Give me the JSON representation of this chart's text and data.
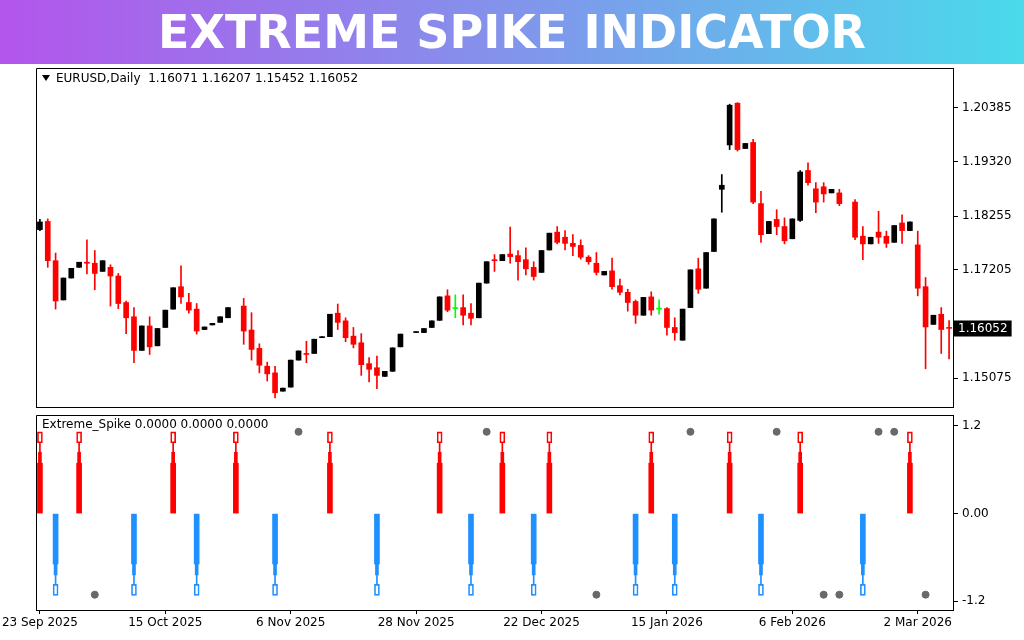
{
  "chart_data": [
    {
      "type": "candlestick",
      "title": "EXTREME SPIKE INDICATOR",
      "subtitle": "EURUSD,Daily  1.16071 1.16207 1.15452 1.16052",
      "categories": [
        null,
        null,
        null,
        null,
        null,
        null,
        null,
        null,
        null,
        null,
        null,
        null,
        null,
        null,
        null,
        null,
        null,
        null,
        null,
        null,
        null,
        null,
        null,
        null,
        null,
        null,
        null,
        null,
        null,
        null,
        null,
        null,
        null,
        null,
        null,
        null,
        null,
        null,
        null,
        null,
        null,
        null,
        null,
        null,
        null,
        null,
        null,
        null,
        null,
        null,
        null,
        null,
        null,
        null,
        null,
        null,
        null,
        null,
        null,
        null,
        null,
        null,
        null,
        null,
        null,
        null,
        null,
        null,
        null,
        null,
        null,
        null,
        null,
        null,
        null,
        null,
        null,
        null,
        null,
        null,
        null,
        null,
        null,
        null,
        null,
        null,
        null,
        null,
        null,
        null,
        null,
        null,
        null,
        null,
        null,
        null,
        null,
        null,
        null,
        null,
        null,
        null,
        null,
        null,
        null,
        null,
        null,
        null,
        null,
        null,
        null,
        null,
        null,
        null,
        null,
        null,
        null
      ],
      "ohlc": [
        [
          1.1799,
          1.1819,
          1.1797,
          1.1814
        ],
        [
          1.1815,
          1.182,
          1.1725,
          1.1738
        ],
        [
          1.1738,
          1.1753,
          1.1643,
          1.1659
        ],
        [
          1.1661,
          1.1704,
          1.1661,
          1.1704
        ],
        [
          1.1704,
          1.1723,
          1.1704,
          1.1723
        ],
        [
          1.1725,
          1.1735,
          1.1725,
          1.1735
        ],
        [
          1.1735,
          1.1779,
          1.1712,
          1.1733
        ],
        [
          1.1733,
          1.1758,
          1.1681,
          1.1713
        ],
        [
          1.1717,
          1.1738,
          1.1717,
          1.1738
        ],
        [
          1.1725,
          1.173,
          1.1649,
          1.1708
        ],
        [
          1.1708,
          1.1713,
          1.1644,
          1.1654
        ],
        [
          1.1656,
          1.1659,
          1.1595,
          1.1626
        ],
        [
          1.1628,
          1.1646,
          1.1538,
          1.1562
        ],
        [
          1.1562,
          1.161,
          1.1562,
          1.161
        ],
        [
          1.161,
          1.1628,
          1.1554,
          1.1569
        ],
        [
          1.1571,
          1.1605,
          1.1571,
          1.1605
        ],
        [
          1.1607,
          1.1641,
          1.1607,
          1.1641
        ],
        [
          1.1643,
          1.1685,
          1.1643,
          1.1685
        ],
        [
          1.1687,
          1.1728,
          1.1654,
          1.1667
        ],
        [
          1.1656,
          1.1674,
          1.1635,
          1.1641
        ],
        [
          1.1643,
          1.1654,
          1.1594,
          1.16
        ],
        [
          1.1603,
          1.1608,
          1.1603,
          1.1608
        ],
        [
          1.1612,
          1.1615,
          1.1612,
          1.1615
        ],
        [
          1.1617,
          1.1628,
          1.1617,
          1.1628
        ],
        [
          1.1626,
          1.1646,
          1.1626,
          1.1646
        ],
        null,
        [
          1.1649,
          1.1664,
          1.1574,
          1.16
        ],
        [
          1.1602,
          1.1636,
          1.1543,
          1.1564
        ],
        [
          1.1566,
          1.1575,
          1.1518,
          1.1533
        ],
        [
          1.1531,
          1.1539,
          1.1502,
          1.1516
        ],
        [
          1.1518,
          1.1531,
          1.1469,
          1.1479
        ],
        [
          1.1482,
          1.1488,
          1.1482,
          1.1488
        ],
        [
          1.149,
          1.1543,
          1.149,
          1.1543
        ],
        [
          1.1543,
          1.1561,
          1.1543,
          1.1561
        ],
        [
          1.1556,
          1.158,
          1.1538,
          1.1554
        ],
        [
          1.1556,
          1.1584,
          1.1556,
          1.1584
        ],
        [
          1.1587,
          1.1589,
          1.1587,
          1.1589
        ],
        [
          1.1589,
          1.1633,
          1.1589,
          1.1633
        ],
        [
          1.1635,
          1.1653,
          1.1603,
          1.1617
        ],
        [
          1.162,
          1.1626,
          1.1579,
          1.1587
        ],
        [
          1.159,
          1.1607,
          1.1567,
          1.1574
        ],
        [
          1.1577,
          1.1595,
          1.1513,
          1.1534
        ],
        [
          1.1536,
          1.1548,
          1.15,
          1.1525
        ],
        [
          1.1528,
          1.1551,
          1.1487,
          1.1513
        ],
        [
          1.1511,
          1.1521,
          1.1511,
          1.1521
        ],
        [
          1.1521,
          1.1567,
          1.1521,
          1.1567
        ],
        [
          1.1569,
          1.1594,
          1.1569,
          1.1594
        ],
        null,
        [
          1.1597,
          1.1599,
          1.1597,
          1.1599
        ],
        [
          1.1597,
          1.1605,
          1.1597,
          1.1605
        ],
        [
          1.1607,
          1.162,
          1.1607,
          1.162
        ],
        [
          1.1621,
          1.1667,
          1.1621,
          1.1667
        ],
        [
          1.1669,
          1.1681,
          1.1638,
          1.1641
        ],
        [
          1.1644,
          1.1671,
          1.1626,
          1.1644
        ],
        [
          1.1646,
          1.1671,
          1.1612,
          1.1631
        ],
        [
          1.1635,
          1.1654,
          1.1612,
          1.1625
        ],
        [
          1.1626,
          1.1694,
          1.1626,
          1.1694
        ],
        [
          1.1694,
          1.1736,
          1.1694,
          1.1736
        ],
        [
          1.174,
          1.175,
          1.1717,
          1.1738
        ],
        [
          1.1738,
          1.175,
          1.1738,
          1.175
        ],
        [
          1.1751,
          1.1804,
          1.1733,
          1.1746
        ],
        [
          1.1748,
          1.1758,
          1.17,
          1.1736
        ],
        [
          1.174,
          1.1763,
          1.171,
          1.1722
        ],
        [
          1.1725,
          1.1736,
          1.17,
          1.1707
        ],
        [
          1.1715,
          1.1758,
          1.1715,
          1.1758
        ],
        [
          1.1759,
          1.1792,
          1.1759,
          1.1792
        ],
        [
          1.1794,
          1.1805,
          1.1771,
          1.1774
        ],
        [
          1.1784,
          1.1797,
          1.1759,
          1.1772
        ],
        [
          1.1772,
          1.1789,
          1.1748,
          1.1766
        ],
        [
          1.1768,
          1.1779,
          1.1741,
          1.1745
        ],
        [
          1.1745,
          1.1748,
          1.1731,
          1.1736
        ],
        [
          1.1733,
          1.1754,
          1.171,
          1.1715
        ],
        [
          1.171,
          1.1717,
          1.171,
          1.1717
        ],
        [
          1.1718,
          1.1743,
          1.1682,
          1.1687
        ],
        [
          1.1689,
          1.1702,
          1.1671,
          1.1676
        ],
        [
          1.1676,
          1.1682,
          1.1639,
          1.1656
        ],
        [
          1.1658,
          1.1661,
          1.1615,
          1.1631
        ],
        [
          1.1631,
          1.1666,
          1.1631,
          1.1666
        ],
        [
          1.1667,
          1.1677,
          1.1631,
          1.1641
        ],
        [
          1.1643,
          1.1661,
          1.1633,
          1.1643
        ],
        [
          1.1644,
          1.1646,
          1.1592,
          1.1607
        ],
        [
          1.1607,
          1.1626,
          1.1582,
          1.1597
        ],
        [
          1.1582,
          1.1643,
          1.1582,
          1.1643
        ],
        [
          1.1646,
          1.172,
          1.1646,
          1.172
        ],
        [
          1.1722,
          1.1743,
          1.1674,
          1.1682
        ],
        [
          1.1684,
          1.1754,
          1.1684,
          1.1754
        ],
        [
          1.1756,
          1.182,
          1.1756,
          1.182
        ],
        [
          1.1878,
          1.1907,
          1.1833,
          1.1886
        ],
        [
          1.1965,
          1.2045,
          1.1956,
          1.2043
        ],
        [
          1.2047,
          1.2048,
          1.1953,
          1.1956
        ],
        [
          1.1958,
          1.1968,
          1.1958,
          1.1968
        ],
        [
          1.197,
          1.1976,
          1.185,
          1.1853
        ],
        [
          1.185,
          1.1874,
          1.1774,
          1.1789
        ],
        [
          1.1791,
          1.1815,
          1.1791,
          1.1815
        ],
        [
          1.1819,
          1.1838,
          1.1789,
          1.1805
        ],
        [
          1.1805,
          1.1822,
          1.1771,
          1.1777
        ],
        [
          1.1781,
          1.182,
          1.1781,
          1.182
        ],
        [
          1.1817,
          1.1915,
          1.1815,
          1.1912
        ],
        [
          1.1915,
          1.193,
          1.1886,
          1.1891
        ],
        [
          1.1879,
          1.1891,
          1.1832,
          1.1853
        ],
        [
          1.1883,
          1.1891,
          1.1853,
          1.1869
        ],
        [
          1.1871,
          1.1878,
          1.1871,
          1.1878
        ],
        [
          1.1871,
          1.1878,
          1.1846,
          1.185
        ],
        null,
        [
          1.1853,
          1.1858,
          1.1779,
          1.1784
        ],
        [
          1.1786,
          1.1805,
          1.174,
          1.1771
        ],
        [
          1.1771,
          1.1784,
          1.1771,
          1.1784
        ],
        [
          1.1794,
          1.1835,
          1.1772,
          1.1784
        ],
        [
          1.1786,
          1.1796,
          1.1764,
          1.1772
        ],
        [
          1.1774,
          1.1807,
          1.1774,
          1.1807
        ],
        [
          1.1812,
          1.1828,
          1.1772,
          1.1797
        ],
        [
          1.1797,
          1.1814,
          1.1797,
          1.1814
        ],
        [
          1.1769,
          1.1796,
          1.1669,
          1.1684
        ],
        [
          1.1687,
          1.1705,
          1.1526,
          1.1608
        ],
        [
          1.1613,
          1.1631,
          1.1613,
          1.1631
        ],
        [
          1.1633,
          1.1646,
          1.1556,
          1.1603
        ],
        [
          1.16071,
          1.16207,
          1.15452,
          1.16052
        ]
      ],
      "colors": [
        "#000000",
        "#ff0000",
        "#ff0000",
        "#000000",
        "#000000",
        "#000000",
        "#ff0000",
        "#ff0000",
        "#000000",
        "#ff0000",
        "#ff0000",
        "#ff0000",
        "#ff0000",
        "#000000",
        "#ff0000",
        "#000000",
        "#000000",
        "#000000",
        "#ff0000",
        "#ff0000",
        "#ff0000",
        "#000000",
        "#000000",
        "#000000",
        "#000000",
        "#000000",
        "#ff0000",
        "#ff0000",
        "#ff0000",
        "#ff0000",
        "#ff0000",
        "#000000",
        "#000000",
        "#000000",
        "#ff0000",
        "#000000",
        "#000000",
        "#000000",
        "#ff0000",
        "#ff0000",
        "#ff0000",
        "#ff0000",
        "#ff0000",
        "#ff0000",
        "#000000",
        "#000000",
        "#000000",
        "#000000",
        "#000000",
        "#000000",
        "#000000",
        "#000000",
        "#ff0000",
        "#00ff00",
        "#ff0000",
        "#ff0000",
        "#000000",
        "#000000",
        "#ff0000",
        "#000000",
        "#ff0000",
        "#ff0000",
        "#ff0000",
        "#ff0000",
        "#000000",
        "#000000",
        "#ff0000",
        "#ff0000",
        "#ff0000",
        "#ff0000",
        "#ff0000",
        "#ff0000",
        "#000000",
        "#ff0000",
        "#ff0000",
        "#ff0000",
        "#ff0000",
        "#000000",
        "#ff0000",
        "#00ff00",
        "#ff0000",
        "#ff0000",
        "#000000",
        "#000000",
        "#ff0000",
        "#000000",
        "#000000",
        "#000000",
        "#000000",
        "#ff0000",
        "#000000",
        "#ff0000",
        "#ff0000",
        "#000000",
        "#ff0000",
        "#ff0000",
        "#000000",
        "#000000",
        "#ff0000",
        "#ff0000",
        "#ff0000",
        "#000000",
        "#ff0000",
        "#000000",
        "#ff0000",
        "#ff0000",
        "#000000",
        "#ff0000",
        "#ff0000",
        "#000000",
        "#ff0000",
        "#000000",
        "#ff0000",
        "#ff0000",
        "#000000",
        "#ff0000",
        "#ff0000"
      ],
      "ylim": [
        1.1451,
        1.2116
      ],
      "yticks": [
        {
          "value": 1.15075,
          "label": "1.15075"
        },
        {
          "value": 1.17205,
          "label": "1.17205"
        },
        {
          "value": 1.18255,
          "label": "1.18255"
        },
        {
          "value": 1.1932,
          "label": "1.19320"
        },
        {
          "value": 1.20385,
          "label": "1.20385"
        }
      ],
      "annotations": [
        "1.16052"
      ],
      "tick_labels": "y"
    },
    {
      "type": "bar",
      "title": "Extreme_Spike 0.0000 0.0000 0.0000",
      "stacked": true,
      "marker": "circle",
      "categories": [
        "23 Sep 2025",
        null,
        null,
        null,
        null,
        null,
        null,
        null,
        null,
        null,
        null,
        null,
        null,
        null,
        null,
        null,
        "15 Oct 2025",
        null,
        null,
        null,
        null,
        null,
        null,
        null,
        null,
        null,
        null,
        null,
        null,
        null,
        null,
        null,
        "6 Nov 2025",
        null,
        null,
        null,
        null,
        null,
        null,
        null,
        null,
        null,
        null,
        null,
        null,
        null,
        null,
        null,
        "28 Nov 2025",
        null,
        null,
        null,
        null,
        null,
        null,
        null,
        null,
        null,
        null,
        null,
        null,
        null,
        null,
        null,
        "22 Dec 2025",
        null,
        null,
        null,
        null,
        null,
        null,
        null,
        null,
        null,
        null,
        null,
        null,
        null,
        null,
        null,
        "15 Jan 2026",
        null,
        null,
        null,
        null,
        null,
        null,
        null,
        null,
        null,
        null,
        null,
        null,
        null,
        null,
        null,
        "6 Feb 2026",
        null,
        null,
        null,
        null,
        null,
        null,
        null,
        null,
        null,
        null,
        null,
        null,
        null,
        null,
        null,
        "2 Mar 2026",
        null,
        null,
        null,
        null
      ],
      "ylim": [
        -1.32,
        1.35
      ],
      "yticks": [
        {
          "value": -1.2,
          "label": "-1.2"
        },
        {
          "value": 0,
          "label": "0.00"
        },
        {
          "value": 1.2,
          "label": "1.2"
        }
      ],
      "series": [
        {
          "color": "#ff0000",
          "values": [
            0.69,
            null,
            null,
            null,
            null,
            0.69,
            null,
            null,
            null,
            null,
            null,
            null,
            null,
            null,
            null,
            null,
            null,
            0.69,
            null,
            null,
            null,
            null,
            null,
            null,
            null,
            0.69,
            null,
            null,
            null,
            null,
            null,
            null,
            null,
            null,
            null,
            null,
            null,
            0.69,
            null,
            null,
            null,
            null,
            null,
            null,
            null,
            null,
            null,
            null,
            null,
            null,
            null,
            0.69,
            null,
            null,
            null,
            null,
            null,
            null,
            null,
            0.69,
            null,
            null,
            null,
            null,
            null,
            0.69,
            null,
            null,
            null,
            null,
            null,
            null,
            null,
            null,
            null,
            null,
            null,
            null,
            0.69,
            null,
            null,
            null,
            null,
            null,
            null,
            null,
            null,
            null,
            0.69,
            null,
            null,
            null,
            null,
            null,
            null,
            null,
            null,
            0.69,
            null,
            null,
            null,
            null,
            null,
            null,
            null,
            null,
            null,
            null,
            null,
            null,
            null,
            0.69,
            null,
            null,
            null,
            null,
            null
          ]
        },
        {
          "color": "#ff0000",
          "values": [
            0.15,
            null,
            null,
            null,
            null,
            0.15,
            null,
            null,
            null,
            null,
            null,
            null,
            null,
            null,
            null,
            null,
            null,
            0.15,
            null,
            null,
            null,
            null,
            null,
            null,
            null,
            0.15,
            null,
            null,
            null,
            null,
            null,
            null,
            null,
            null,
            null,
            null,
            null,
            0.15,
            null,
            null,
            null,
            null,
            null,
            null,
            null,
            null,
            null,
            null,
            null,
            null,
            null,
            0.15,
            null,
            null,
            null,
            null,
            null,
            null,
            null,
            0.15,
            null,
            null,
            null,
            null,
            null,
            0.15,
            null,
            null,
            null,
            null,
            null,
            null,
            null,
            null,
            null,
            null,
            null,
            null,
            0.15,
            null,
            null,
            null,
            null,
            null,
            null,
            null,
            null,
            null,
            0.15,
            null,
            null,
            null,
            null,
            null,
            null,
            null,
            null,
            0.15,
            null,
            null,
            null,
            null,
            null,
            null,
            null,
            null,
            null,
            null,
            null,
            null,
            null,
            0.15,
            null,
            null,
            null,
            null,
            null
          ]
        },
        {
          "color": "#ff0000",
          "values": [
            0.13,
            null,
            null,
            null,
            null,
            0.13,
            null,
            null,
            null,
            null,
            null,
            null,
            null,
            null,
            null,
            null,
            null,
            0.13,
            null,
            null,
            null,
            null,
            null,
            null,
            null,
            0.13,
            null,
            null,
            null,
            null,
            null,
            null,
            null,
            null,
            null,
            null,
            null,
            0.13,
            null,
            null,
            null,
            null,
            null,
            null,
            null,
            null,
            null,
            null,
            null,
            null,
            null,
            0.13,
            null,
            null,
            null,
            null,
            null,
            null,
            null,
            0.13,
            null,
            null,
            null,
            null,
            null,
            0.13,
            null,
            null,
            null,
            null,
            null,
            null,
            null,
            null,
            null,
            null,
            null,
            null,
            0.13,
            null,
            null,
            null,
            null,
            null,
            null,
            null,
            null,
            null,
            0.13,
            null,
            null,
            null,
            null,
            null,
            null,
            null,
            null,
            0.13,
            null,
            null,
            null,
            null,
            null,
            null,
            null,
            null,
            null,
            null,
            null,
            null,
            null,
            0.13,
            null,
            null,
            null,
            null,
            null
          ]
        },
        {
          "color": "#ff0000",
          "values": [
            0.15,
            null,
            null,
            null,
            null,
            0.15,
            null,
            null,
            null,
            null,
            null,
            null,
            null,
            null,
            null,
            null,
            null,
            0.15,
            null,
            null,
            null,
            null,
            null,
            null,
            null,
            0.15,
            null,
            null,
            null,
            null,
            null,
            null,
            null,
            null,
            null,
            null,
            null,
            0.15,
            null,
            null,
            null,
            null,
            null,
            null,
            null,
            null,
            null,
            null,
            null,
            null,
            null,
            0.15,
            null,
            null,
            null,
            null,
            null,
            null,
            null,
            0.15,
            null,
            null,
            null,
            null,
            null,
            0.15,
            null,
            null,
            null,
            null,
            null,
            null,
            null,
            null,
            null,
            null,
            null,
            null,
            0.15,
            null,
            null,
            null,
            null,
            null,
            null,
            null,
            null,
            null,
            0.15,
            null,
            null,
            null,
            null,
            null,
            null,
            null,
            null,
            0.15,
            null,
            null,
            null,
            null,
            null,
            null,
            null,
            null,
            null,
            null,
            null,
            null,
            null,
            0.15,
            null,
            null,
            null,
            null,
            null
          ]
        },
        {
          "color": "#1e90ff",
          "values": [
            null,
            null,
            -0.69,
            null,
            null,
            null,
            null,
            null,
            null,
            null,
            null,
            null,
            -0.69,
            null,
            null,
            null,
            null,
            null,
            null,
            null,
            -0.69,
            null,
            null,
            null,
            null,
            null,
            null,
            null,
            null,
            null,
            -0.69,
            null,
            null,
            null,
            null,
            null,
            null,
            null,
            null,
            null,
            null,
            null,
            null,
            -0.69,
            null,
            null,
            null,
            null,
            null,
            null,
            null,
            null,
            null,
            null,
            null,
            -0.69,
            null,
            null,
            null,
            null,
            null,
            null,
            null,
            -0.69,
            null,
            null,
            null,
            null,
            null,
            null,
            null,
            null,
            null,
            null,
            null,
            null,
            -0.69,
            null,
            null,
            null,
            null,
            -0.69,
            null,
            null,
            null,
            null,
            null,
            null,
            null,
            null,
            null,
            null,
            -0.69,
            null,
            null,
            null,
            null,
            null,
            null,
            null,
            null,
            null,
            null,
            null,
            null,
            -0.69,
            null,
            null,
            null,
            null,
            null,
            null,
            null,
            null,
            null,
            null,
            null
          ]
        },
        {
          "color": "#1e90ff",
          "values": [
            null,
            null,
            -0.15,
            null,
            null,
            null,
            null,
            null,
            null,
            null,
            null,
            null,
            -0.15,
            null,
            null,
            null,
            null,
            null,
            null,
            null,
            -0.15,
            null,
            null,
            null,
            null,
            null,
            null,
            null,
            null,
            null,
            -0.15,
            null,
            null,
            null,
            null,
            null,
            null,
            null,
            null,
            null,
            null,
            null,
            null,
            -0.15,
            null,
            null,
            null,
            null,
            null,
            null,
            null,
            null,
            null,
            null,
            null,
            -0.15,
            null,
            null,
            null,
            null,
            null,
            null,
            null,
            -0.15,
            null,
            null,
            null,
            null,
            null,
            null,
            null,
            null,
            null,
            null,
            null,
            null,
            -0.15,
            null,
            null,
            null,
            null,
            -0.15,
            null,
            null,
            null,
            null,
            null,
            null,
            null,
            null,
            null,
            null,
            -0.15,
            null,
            null,
            null,
            null,
            null,
            null,
            null,
            null,
            null,
            null,
            null,
            null,
            -0.15,
            null,
            null,
            null,
            null,
            null,
            null,
            null,
            null,
            null,
            null,
            null
          ]
        },
        {
          "color": "#1e90ff",
          "values": [
            null,
            null,
            -0.13,
            null,
            null,
            null,
            null,
            null,
            null,
            null,
            null,
            null,
            -0.13,
            null,
            null,
            null,
            null,
            null,
            null,
            null,
            -0.13,
            null,
            null,
            null,
            null,
            null,
            null,
            null,
            null,
            null,
            -0.13,
            null,
            null,
            null,
            null,
            null,
            null,
            null,
            null,
            null,
            null,
            null,
            null,
            -0.13,
            null,
            null,
            null,
            null,
            null,
            null,
            null,
            null,
            null,
            null,
            null,
            -0.13,
            null,
            null,
            null,
            null,
            null,
            null,
            null,
            -0.13,
            null,
            null,
            null,
            null,
            null,
            null,
            null,
            null,
            null,
            null,
            null,
            null,
            -0.13,
            null,
            null,
            null,
            null,
            -0.13,
            null,
            null,
            null,
            null,
            null,
            null,
            null,
            null,
            null,
            null,
            -0.13,
            null,
            null,
            null,
            null,
            null,
            null,
            null,
            null,
            null,
            null,
            null,
            null,
            -0.13,
            null,
            null,
            null,
            null,
            null,
            null,
            null,
            null,
            null,
            null,
            null
          ]
        },
        {
          "color": "#1e90ff",
          "values": [
            null,
            null,
            -0.15,
            null,
            null,
            null,
            null,
            null,
            null,
            null,
            null,
            null,
            -0.15,
            null,
            null,
            null,
            null,
            null,
            null,
            null,
            -0.15,
            null,
            null,
            null,
            null,
            null,
            null,
            null,
            null,
            null,
            -0.15,
            null,
            null,
            null,
            null,
            null,
            null,
            null,
            null,
            null,
            null,
            null,
            null,
            -0.15,
            null,
            null,
            null,
            null,
            null,
            null,
            null,
            null,
            null,
            null,
            null,
            -0.15,
            null,
            null,
            null,
            null,
            null,
            null,
            null,
            -0.15,
            null,
            null,
            null,
            null,
            null,
            null,
            null,
            null,
            null,
            null,
            null,
            null,
            -0.15,
            null,
            null,
            null,
            null,
            -0.15,
            null,
            null,
            null,
            null,
            null,
            null,
            null,
            null,
            null,
            null,
            -0.15,
            null,
            null,
            null,
            null,
            null,
            null,
            null,
            null,
            null,
            null,
            null,
            null,
            -0.15,
            null,
            null,
            null,
            null,
            null,
            null,
            null,
            null,
            null,
            null,
            null
          ]
        },
        {
          "type": "scatter",
          "color": "#696969",
          "values": [
            null,
            null,
            null,
            null,
            null,
            null,
            null,
            -1.11,
            null,
            null,
            null,
            null,
            null,
            null,
            null,
            null,
            null,
            null,
            null,
            null,
            null,
            null,
            null,
            null,
            null,
            null,
            null,
            null,
            null,
            null,
            null,
            null,
            null,
            1.12,
            null,
            null,
            null,
            null,
            null,
            null,
            null,
            null,
            null,
            null,
            null,
            null,
            null,
            null,
            null,
            null,
            null,
            null,
            null,
            null,
            null,
            null,
            null,
            1.12,
            null,
            null,
            null,
            null,
            null,
            null,
            null,
            null,
            null,
            null,
            null,
            null,
            null,
            -1.11,
            null,
            null,
            null,
            null,
            null,
            null,
            null,
            null,
            null,
            null,
            null,
            1.12,
            null,
            null,
            null,
            null,
            null,
            null,
            null,
            null,
            null,
            null,
            1.12,
            null,
            null,
            null,
            null,
            null,
            -1.11,
            null,
            -1.11,
            null,
            null,
            null,
            null,
            1.12,
            null,
            1.12,
            null,
            null,
            null,
            -1.11,
            null,
            null,
            null
          ]
        }
      ]
    }
  ]
}
